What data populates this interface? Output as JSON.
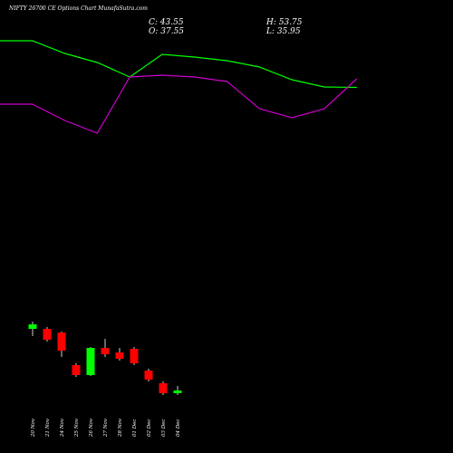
{
  "title": "NIFTY 26700  CE Options  Chart MunafaSutra.com",
  "stats": {
    "close": "C: 43.55",
    "open": "O: 37.55",
    "high": "H: 53.75",
    "low": "L: 35.95"
  },
  "colors": {
    "bull": "#00ff00",
    "bear": "#ff0000",
    "wick": "#ffffff",
    "line_upper": "#00ff00",
    "line_lower": "#cc00cc",
    "background": "#000000"
  },
  "chart_data": {
    "type": "candlestick",
    "categories": [
      "20 Nov",
      "21 Nov",
      "24 Nov",
      "25 Nov",
      "26 Nov",
      "27 Nov",
      "28 Nov",
      "01 Dec",
      "02 Dec",
      "03 Dec",
      "04 Dec"
    ],
    "ohlc": [
      {
        "open": 152,
        "high": 160,
        "low": 144,
        "close": 157
      },
      {
        "open": 152,
        "high": 154,
        "low": 138,
        "close": 140
      },
      {
        "open": 148,
        "high": 149,
        "low": 121,
        "close": 128
      },
      {
        "open": 112,
        "high": 114,
        "low": 99,
        "close": 101
      },
      {
        "open": 101,
        "high": 132,
        "low": 100,
        "close": 131
      },
      {
        "open": 131,
        "high": 141,
        "low": 121,
        "close": 124
      },
      {
        "open": 126,
        "high": 131,
        "low": 117,
        "close": 119
      },
      {
        "open": 130,
        "high": 132,
        "low": 112,
        "close": 114
      },
      {
        "open": 106,
        "high": 108,
        "low": 94,
        "close": 96
      },
      {
        "open": 92,
        "high": 94,
        "low": 79,
        "close": 81
      },
      {
        "open": 81,
        "high": 89,
        "low": 79,
        "close": 84
      }
    ],
    "upper_line": [
      470,
      470,
      456,
      446,
      430,
      455,
      452,
      448,
      441,
      427,
      419,
      418.5
    ],
    "lower_line": [
      400,
      400,
      382,
      368,
      430,
      432,
      430,
      425,
      395,
      385,
      395,
      428
    ],
    "ylim": [
      60,
      480
    ]
  }
}
